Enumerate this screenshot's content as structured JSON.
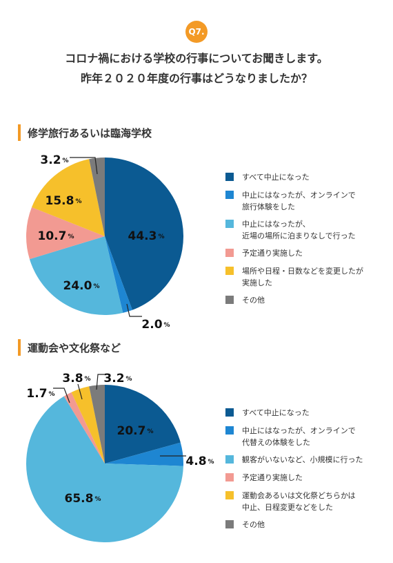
{
  "badge": "Q7.",
  "question": {
    "line1": "コロナ禍における学校の行事についてお聞きします。",
    "line2": "昨年２０２０年度の行事はどうなりましたか？"
  },
  "colors": {
    "dark_blue": "#0b5a92",
    "blue": "#1e86d2",
    "light_blue": "#55b7dc",
    "pink": "#f29a92",
    "yellow": "#f6c02b",
    "gray": "#7b7b7b",
    "accent_orange": "#f39a26"
  },
  "chart_data": [
    {
      "type": "pie",
      "title": "修学旅行あるいは臨海学校",
      "unit": "%",
      "labels": [
        "すべて中止になった",
        "中止にはなったが、オンラインで\n旅行体験をした",
        "中止にはなったが、\n近場の場所に泊まりなしで行った",
        "予定通り実施した",
        "場所や日程・日数などを変更したが\n実施した",
        "その他"
      ],
      "values": [
        44.3,
        2.0,
        24.0,
        10.7,
        15.8,
        3.2
      ],
      "display_values": [
        "44.3",
        "2.0",
        "24.0",
        "10.7",
        "15.8",
        "3.2"
      ],
      "colors": [
        "#0b5a92",
        "#1e86d2",
        "#55b7dc",
        "#f29a92",
        "#f6c02b",
        "#7b7b7b"
      ]
    },
    {
      "type": "pie",
      "title": "運動会や文化祭など",
      "unit": "%",
      "labels": [
        "すべて中止になった",
        "中止にはなったが、オンラインで\n代替えの体験をした",
        "観客がいないなど、小規模に行った",
        "予定通り実施した",
        "運動会あるいは文化祭どちらかは\n中止、日程変更などをした",
        "その他"
      ],
      "values": [
        20.7,
        4.8,
        65.8,
        1.7,
        3.8,
        3.2
      ],
      "display_values": [
        "20.7",
        "4.8",
        "65.8",
        "1.7",
        "3.8",
        "3.2"
      ],
      "colors": [
        "#0b5a92",
        "#1e86d2",
        "#55b7dc",
        "#f29a92",
        "#f6c02b",
        "#7b7b7b"
      ]
    }
  ]
}
